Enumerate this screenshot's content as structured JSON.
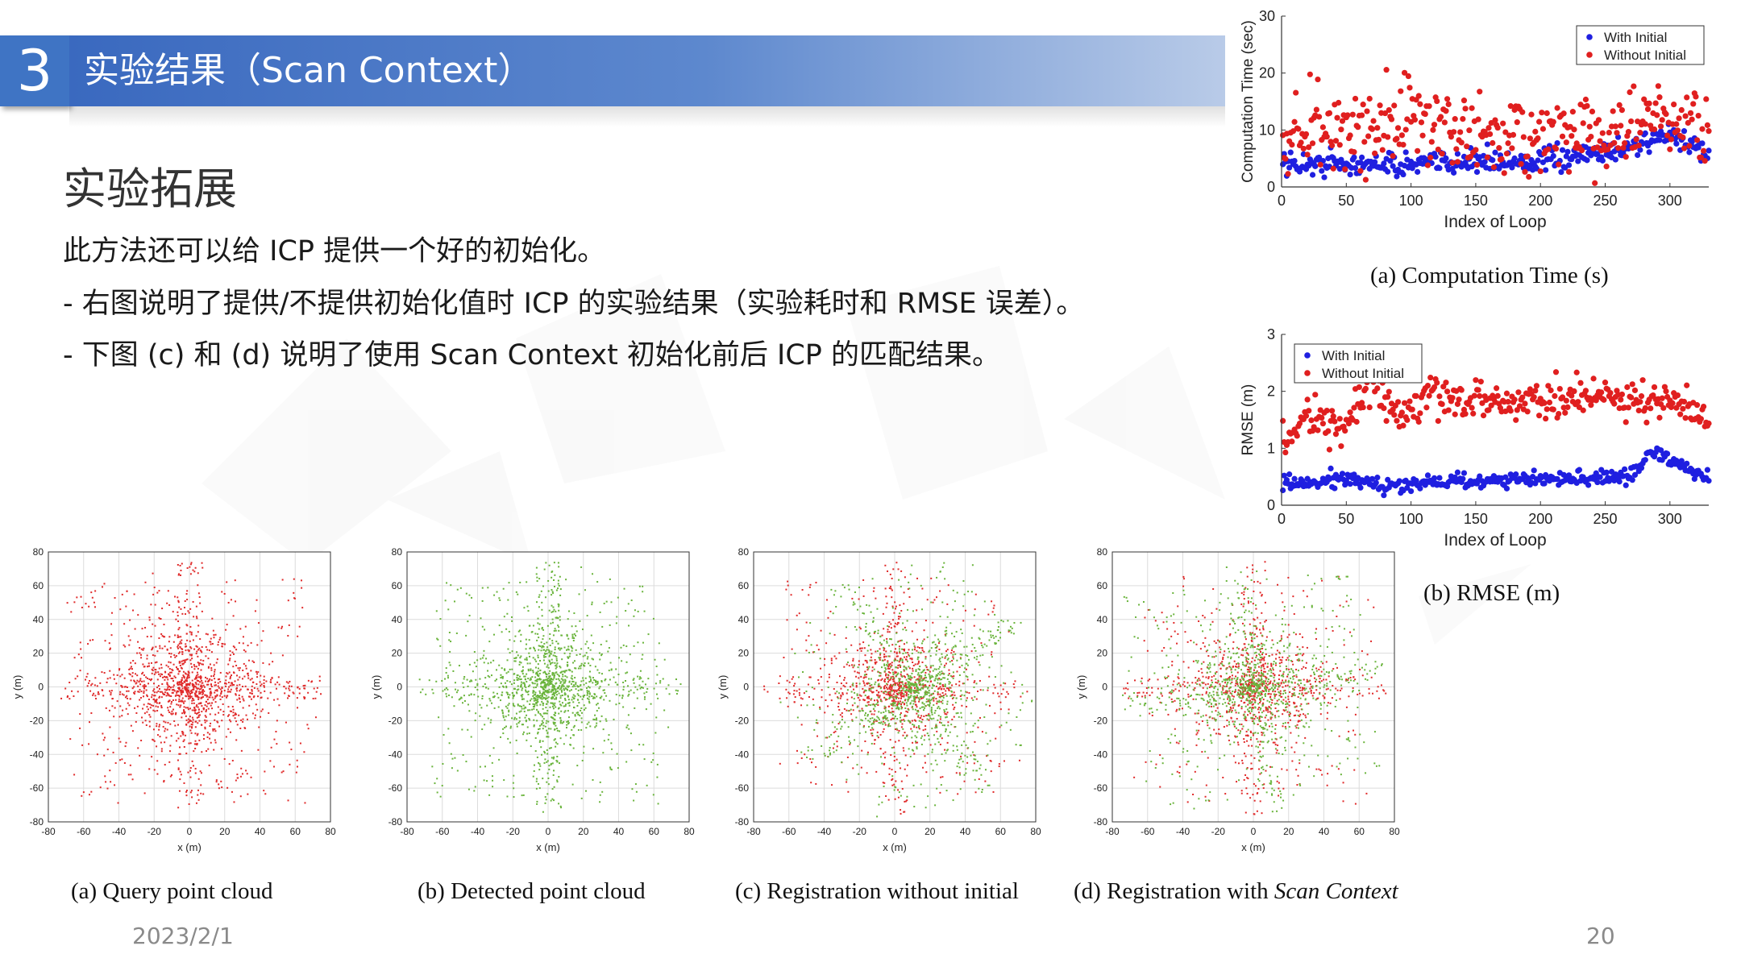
{
  "header": {
    "section_number": "3",
    "title": "实验结果（Scan Context）"
  },
  "content": {
    "heading": "实验拓展",
    "lines": [
      "此方法还可以给 ICP 提供一个好的初始化。",
      "- 右图说明了提供/不提供初始化值时 ICP 的实验结果（实验耗时和 RMSE 误差）。",
      "- 下图 (c) 和 (d) 说明了使用 Scan Context 初始化前后 ICP 的匹配结果。"
    ]
  },
  "footer": {
    "date": "2023/2/1",
    "page": "20"
  },
  "colors": {
    "with_initial": "#1f1fe0",
    "without_initial": "#e01f1f",
    "query": "#e02a2a",
    "detected": "#6ab43c",
    "title_bar": "#3f74c4"
  },
  "captions": {
    "time": "(a)  Computation Time (s)",
    "rmse": "(b)  RMSE (m)",
    "pc_a": "(a)  Query point cloud",
    "pc_b": "(b)  Detected point cloud",
    "pc_c": "(c)  Registration without initial",
    "pc_d_prefix": "(d)  Registration with ",
    "pc_d_italic": "Scan Context"
  },
  "chart_data": [
    {
      "type": "scatter",
      "xlabel": "Index of Loop",
      "ylabel": "Computation Time (sec)",
      "xlim": [
        0,
        330
      ],
      "ylim": [
        0,
        30
      ],
      "xticks": [
        0,
        50,
        100,
        150,
        200,
        250,
        300
      ],
      "yticks": [
        0,
        10,
        20,
        30
      ],
      "legend": "top-right",
      "series": [
        {
          "name": "With Initial",
          "color": "#1f1fe0",
          "mean_by_x": [
            [
              0,
              4
            ],
            [
              40,
              4
            ],
            [
              100,
              4
            ],
            [
              160,
              4.5
            ],
            [
              200,
              4.5
            ],
            [
              250,
              6
            ],
            [
              300,
              9
            ],
            [
              330,
              6
            ]
          ],
          "spread": 2
        },
        {
          "name": "Without Initial",
          "color": "#e01f1f",
          "mean_by_x": [
            [
              0,
              8
            ],
            [
              40,
              10
            ],
            [
              100,
              12
            ],
            [
              160,
              9
            ],
            [
              200,
              9
            ],
            [
              250,
              9
            ],
            [
              300,
              12
            ],
            [
              330,
              10
            ]
          ],
          "spread": 7
        }
      ]
    },
    {
      "type": "scatter",
      "xlabel": "Index of Loop",
      "ylabel": "RMSE (m)",
      "xlim": [
        0,
        330
      ],
      "ylim": [
        0,
        3
      ],
      "xticks": [
        0,
        50,
        100,
        150,
        200,
        250,
        300
      ],
      "yticks": [
        0,
        1,
        2,
        3
      ],
      "legend": "top-left",
      "series": [
        {
          "name": "With Initial",
          "color": "#1f1fe0",
          "mean_by_x": [
            [
              0,
              0.35
            ],
            [
              50,
              0.45
            ],
            [
              80,
              0.3
            ],
            [
              100,
              0.4
            ],
            [
              200,
              0.45
            ],
            [
              270,
              0.5
            ],
            [
              285,
              0.95
            ],
            [
              330,
              0.45
            ]
          ],
          "spread": 0.12
        },
        {
          "name": "Without Initial",
          "color": "#e01f1f",
          "mean_by_x": [
            [
              0,
              1.0
            ],
            [
              20,
              1.6
            ],
            [
              50,
              1.3
            ],
            [
              70,
              2.2
            ],
            [
              90,
              1.5
            ],
            [
              110,
              1.9
            ],
            [
              150,
              1.8
            ],
            [
              250,
              1.9
            ],
            [
              300,
              1.8
            ],
            [
              330,
              1.55
            ]
          ],
          "spread": 0.3
        }
      ]
    },
    {
      "type": "scatter",
      "xlabel": "x (m)",
      "ylabel": "y (m)",
      "xlim": [
        -80,
        80
      ],
      "ylim": [
        -80,
        80
      ],
      "xticks": [
        -80,
        -60,
        -40,
        -20,
        0,
        20,
        40,
        60,
        80
      ],
      "yticks": [
        -80,
        -60,
        -40,
        -20,
        0,
        20,
        40,
        60,
        80
      ],
      "grid": true,
      "series": [
        {
          "role": "query",
          "color": "#e02a2a"
        }
      ]
    },
    {
      "type": "scatter",
      "xlabel": "x (m)",
      "ylabel": "y (m)",
      "xlim": [
        -80,
        80
      ],
      "ylim": [
        -80,
        80
      ],
      "xticks": [
        -80,
        -60,
        -40,
        -20,
        0,
        20,
        40,
        60,
        80
      ],
      "yticks": [
        -80,
        -60,
        -40,
        -20,
        0,
        20,
        40,
        60,
        80
      ],
      "grid": true,
      "series": [
        {
          "role": "detected",
          "color": "#6ab43c"
        }
      ]
    },
    {
      "type": "scatter",
      "xlabel": "x (m)",
      "ylabel": "y (m)",
      "xlim": [
        -80,
        80
      ],
      "ylim": [
        -80,
        80
      ],
      "xticks": [
        -80,
        -60,
        -40,
        -20,
        0,
        20,
        40,
        60,
        80
      ],
      "yticks": [
        -80,
        -60,
        -40,
        -20,
        0,
        20,
        40,
        60,
        80
      ],
      "grid": true,
      "series": [
        {
          "role": "query",
          "color": "#e02a2a"
        },
        {
          "role": "detected",
          "color": "#6ab43c"
        }
      ]
    },
    {
      "type": "scatter",
      "xlabel": "x (m)",
      "ylabel": "y (m)",
      "xlim": [
        -80,
        80
      ],
      "ylim": [
        -80,
        80
      ],
      "xticks": [
        -80,
        -60,
        -40,
        -20,
        0,
        20,
        40,
        60,
        80
      ],
      "yticks": [
        -80,
        -60,
        -40,
        -20,
        0,
        20,
        40,
        60,
        80
      ],
      "grid": true,
      "series": [
        {
          "role": "query",
          "color": "#e02a2a"
        },
        {
          "role": "detected",
          "color": "#6ab43c"
        }
      ]
    }
  ]
}
